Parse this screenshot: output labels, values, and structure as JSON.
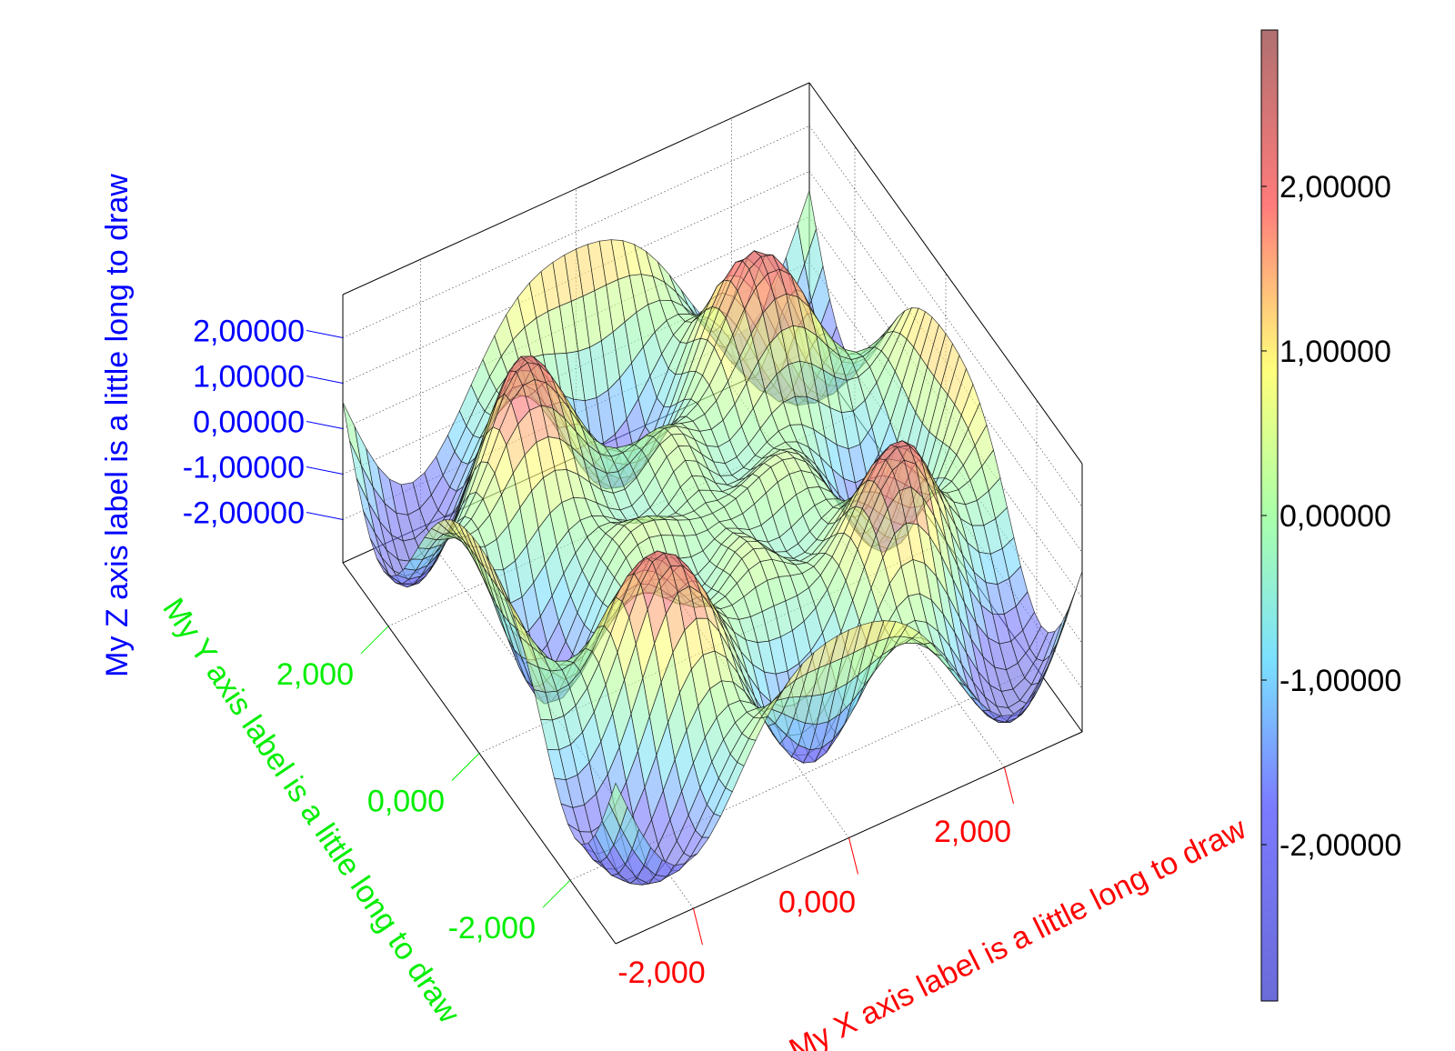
{
  "chart_data": {
    "type": "surface3d",
    "title": "",
    "xlabel": "My X axis label is a little long to draw",
    "ylabel": "My Y axis label is a little long to draw",
    "zlabel": "My Z axis label is a little long to draw",
    "xlim": [
      -3.0,
      3.0
    ],
    "ylim": [
      -3.0,
      3.0
    ],
    "zlim": [
      -2.95,
      2.95
    ],
    "x_ticks": [
      "-2,000",
      "0,000",
      "2,000"
    ],
    "x_tick_values": [
      -2,
      0,
      2
    ],
    "y_ticks": [
      "-2,000",
      "0,000",
      "2,000"
    ],
    "y_tick_values": [
      -2,
      0,
      2
    ],
    "z_ticks": [
      "2,00000",
      "1,00000",
      "0,00000",
      "-1,00000",
      "-2,00000"
    ],
    "z_tick_values": [
      2,
      1,
      0,
      -1,
      -2
    ],
    "colorbar_ticks": [
      "2,00000",
      "1,00000",
      "0,00000",
      "-1,00000",
      "-2,00000"
    ],
    "colorbar_tick_values": [
      2,
      1,
      0,
      -1,
      -2
    ],
    "colorbar_range": [
      -2.95,
      2.95
    ],
    "colormap": [
      "#7b7bff",
      "#7be0ff",
      "#aaffaa",
      "#ffff7b",
      "#ff7b7b",
      "#b07070"
    ],
    "grid": true,
    "surface_function": "approx. z = 2.95*sin(2.4*r)*cos(4*theta), 40x40 mesh",
    "axis_colors": {
      "x": "#ff0000",
      "y": "#00ee00",
      "z": "#0000ff",
      "colorbar": "#000000"
    }
  }
}
